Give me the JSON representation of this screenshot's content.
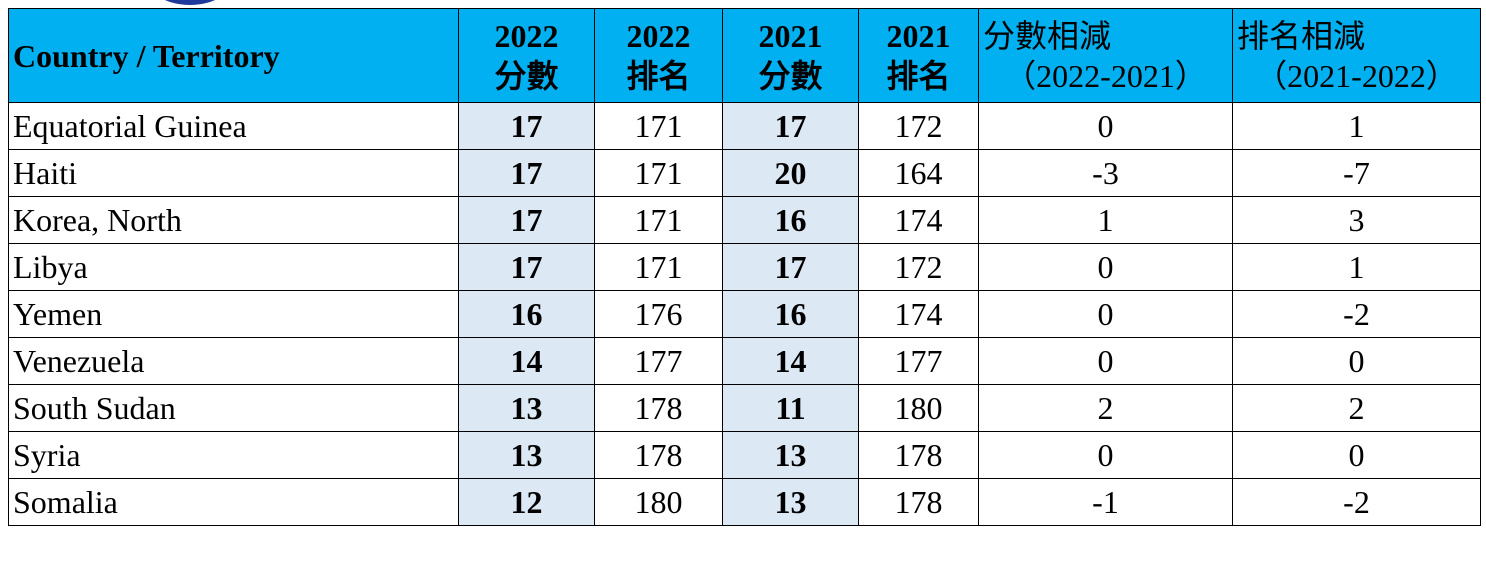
{
  "table": {
    "header": [
      [
        "Country / Territory"
      ],
      [
        "2022",
        "分數"
      ],
      [
        "2022",
        "排名"
      ],
      [
        "2021",
        "分數"
      ],
      [
        "2021",
        "排名"
      ],
      [
        "分數相減",
        "（2022-2021）"
      ],
      [
        "排名相減",
        "（2021-2022）"
      ]
    ],
    "rows": [
      [
        "Equatorial Guinea",
        17,
        171,
        17,
        172,
        0,
        1
      ],
      [
        "Haiti",
        17,
        171,
        20,
        164,
        -3,
        -7
      ],
      [
        "Korea, North",
        17,
        171,
        16,
        174,
        1,
        3
      ],
      [
        "Libya",
        17,
        171,
        17,
        172,
        0,
        1
      ],
      [
        "Yemen",
        16,
        176,
        16,
        174,
        0,
        -2
      ],
      [
        "Venezuela",
        14,
        177,
        14,
        177,
        0,
        0
      ],
      [
        "South Sudan",
        13,
        178,
        11,
        180,
        2,
        2
      ],
      [
        "Syria",
        13,
        178,
        13,
        178,
        0,
        0
      ],
      [
        "Somalia",
        12,
        180,
        13,
        178,
        -1,
        -2
      ]
    ]
  }
}
